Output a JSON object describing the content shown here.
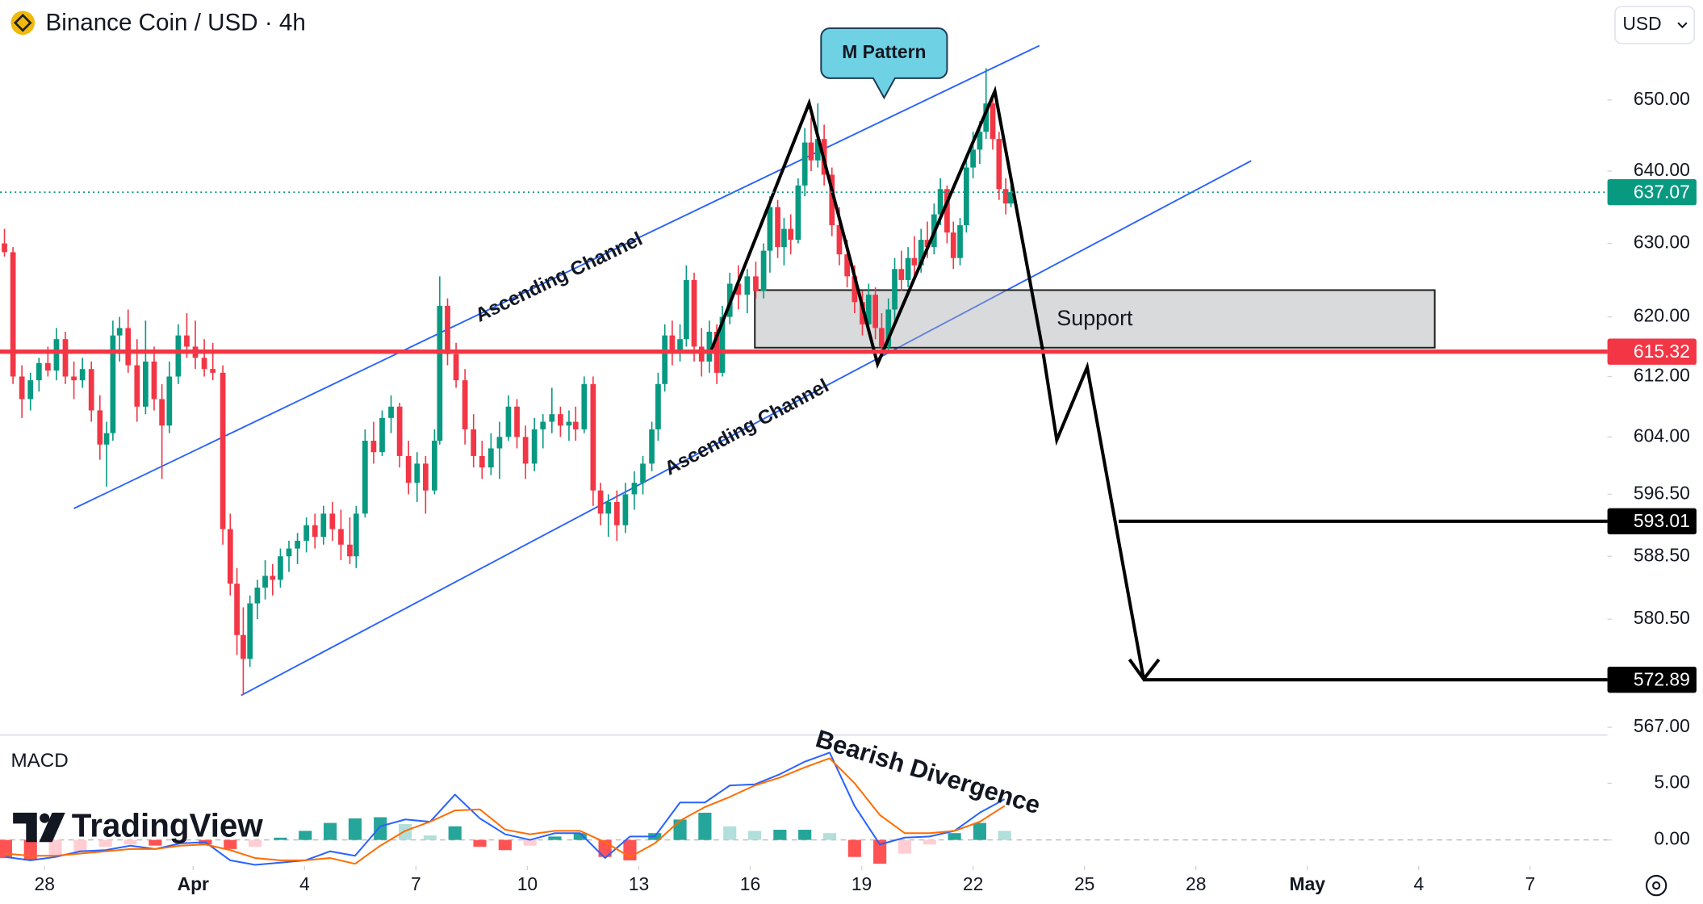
{
  "toolbar": {
    "currency": "USD"
  },
  "watermark": "TradingView",
  "chart_data": [
    {
      "type": "candlestick",
      "title": "Binance Coin / USD · 4h",
      "log_scale": true,
      "grid": false,
      "xlim": [
        -1.2,
        42.08
      ],
      "ylim": [
        566.1,
        664.3
      ],
      "xticks": [
        {
          "value": 0,
          "label": "28"
        },
        {
          "value": 4,
          "label": "Apr"
        },
        {
          "value": 7,
          "label": "4"
        },
        {
          "value": 10,
          "label": "7"
        },
        {
          "value": 13,
          "label": "10"
        },
        {
          "value": 16,
          "label": "13"
        },
        {
          "value": 19,
          "label": "16"
        },
        {
          "value": 22,
          "label": "19"
        },
        {
          "value": 25,
          "label": "22"
        },
        {
          "value": 28,
          "label": "25"
        },
        {
          "value": 31,
          "label": "28"
        },
        {
          "value": 34,
          "label": "May"
        },
        {
          "value": 37,
          "label": "4"
        },
        {
          "value": 40,
          "label": "7"
        }
      ],
      "yticks": [
        {
          "value": 567,
          "label": "567.00"
        },
        {
          "value": 580.5,
          "label": "580.50"
        },
        {
          "value": 588.5,
          "label": "588.50"
        },
        {
          "value": 596.5,
          "label": "596.50"
        },
        {
          "value": 604,
          "label": "604.00"
        },
        {
          "value": 612,
          "label": "612.00"
        },
        {
          "value": 620,
          "label": "620.00"
        },
        {
          "value": 630,
          "label": "630.00"
        },
        {
          "value": 640,
          "label": "640.00"
        },
        {
          "value": 650,
          "label": "650.00"
        }
      ],
      "up_color": "#089981",
      "down_color": "#f23645",
      "candles": [
        [
          -1.08,
          630.0,
          632.0,
          628.2,
          628.8
        ],
        [
          -0.85,
          628.8,
          629.5,
          611.0,
          612.0
        ],
        [
          -0.61,
          612.0,
          613.5,
          606.5,
          609.0
        ],
        [
          -0.38,
          609.0,
          612.5,
          607.5,
          611.5
        ],
        [
          -0.15,
          611.5,
          614.5,
          610.0,
          613.8
        ],
        [
          0.09,
          613.8,
          616.0,
          612.0,
          612.8
        ],
        [
          0.32,
          612.8,
          618.5,
          611.5,
          617.0
        ],
        [
          0.56,
          617.0,
          618.0,
          611.0,
          612.0
        ],
        [
          0.79,
          612.0,
          614.0,
          609.0,
          611.5
        ],
        [
          1.02,
          611.5,
          614.5,
          610.5,
          613.0
        ],
        [
          1.26,
          613.0,
          614.0,
          606.0,
          607.5
        ],
        [
          1.49,
          607.5,
          609.5,
          601.0,
          603.0
        ],
        [
          1.67,
          603.0,
          606.0,
          597.5,
          604.5
        ],
        [
          1.84,
          604.5,
          619.5,
          603.5,
          617.5
        ],
        [
          2.02,
          617.5,
          620.0,
          614.0,
          618.5
        ],
        [
          2.25,
          618.5,
          621.0,
          612.5,
          613.5
        ],
        [
          2.49,
          613.5,
          617.0,
          606.0,
          608.0
        ],
        [
          2.72,
          608.0,
          619.5,
          607.0,
          614.0
        ],
        [
          2.95,
          614.0,
          616.0,
          607.5,
          609.0
        ],
        [
          3.16,
          609.0,
          611.0,
          598.5,
          605.5
        ],
        [
          3.36,
          605.5,
          614.0,
          604.5,
          612.0
        ],
        [
          3.6,
          612.0,
          619.0,
          611.0,
          617.5
        ],
        [
          3.83,
          617.5,
          620.5,
          614.5,
          616.0
        ],
        [
          4.06,
          616.0,
          619.5,
          613.0,
          614.5
        ],
        [
          4.3,
          614.5,
          617.0,
          612.0,
          613.0
        ],
        [
          4.53,
          613.0,
          616.5,
          611.5,
          612.5
        ],
        [
          4.8,
          612.5,
          613.5,
          590.0,
          592.0
        ],
        [
          5.0,
          592.0,
          594.0,
          583.5,
          585.0
        ],
        [
          5.18,
          585.0,
          587.0,
          576.0,
          578.5
        ],
        [
          5.35,
          578.5,
          582.0,
          571.0,
          575.5
        ],
        [
          5.53,
          575.5,
          583.5,
          574.5,
          582.5
        ],
        [
          5.73,
          582.5,
          585.5,
          580.5,
          584.5
        ],
        [
          5.94,
          584.5,
          588.0,
          583.0,
          586.0
        ],
        [
          6.14,
          586.0,
          587.5,
          583.5,
          585.5
        ],
        [
          6.35,
          585.5,
          589.5,
          584.5,
          588.5
        ],
        [
          6.58,
          588.5,
          590.5,
          586.5,
          589.5
        ],
        [
          6.81,
          589.5,
          591.5,
          587.5,
          590.5
        ],
        [
          7.05,
          590.5,
          593.5,
          589.0,
          592.5
        ],
        [
          7.28,
          592.5,
          594.0,
          589.5,
          591.0
        ],
        [
          7.51,
          591.0,
          595.0,
          590.0,
          594.0
        ],
        [
          7.75,
          594.0,
          595.5,
          590.5,
          592.0
        ],
        [
          7.98,
          592.0,
          594.5,
          588.0,
          590.0
        ],
        [
          8.22,
          590.0,
          593.5,
          587.5,
          588.5
        ],
        [
          8.39,
          588.5,
          595.0,
          587.0,
          594.0
        ],
        [
          8.63,
          594.0,
          605.0,
          593.5,
          603.5
        ],
        [
          8.86,
          603.5,
          606.0,
          600.5,
          602.0
        ],
        [
          9.09,
          602.0,
          607.5,
          601.5,
          606.5
        ],
        [
          9.33,
          606.5,
          609.5,
          604.5,
          608.0
        ],
        [
          9.56,
          608.0,
          608.5,
          600.0,
          601.5
        ],
        [
          9.8,
          601.5,
          603.5,
          596.5,
          598.0
        ],
        [
          10.03,
          598.0,
          602.0,
          595.5,
          600.5
        ],
        [
          10.26,
          600.5,
          601.5,
          594.0,
          597.0
        ],
        [
          10.5,
          597.0,
          605.0,
          596.5,
          603.5
        ],
        [
          10.64,
          603.5,
          625.5,
          603.0,
          621.5
        ],
        [
          10.85,
          621.5,
          622.5,
          613.5,
          615.0
        ],
        [
          11.08,
          615.0,
          616.5,
          610.5,
          611.5
        ],
        [
          11.32,
          611.5,
          613.0,
          603.0,
          605.0
        ],
        [
          11.55,
          605.0,
          607.0,
          600.0,
          601.5
        ],
        [
          11.78,
          601.5,
          603.5,
          598.5,
          600.0
        ],
        [
          12.02,
          600.0,
          604.5,
          599.0,
          602.5
        ],
        [
          12.25,
          602.5,
          606.0,
          598.5,
          604.0
        ],
        [
          12.49,
          604.0,
          609.5,
          603.5,
          608.0
        ],
        [
          12.72,
          608.0,
          609.0,
          602.5,
          604.0
        ],
        [
          12.95,
          604.0,
          605.5,
          598.5,
          600.5
        ],
        [
          13.19,
          600.5,
          606.5,
          599.5,
          605.0
        ],
        [
          13.42,
          605.0,
          607.0,
          602.5,
          606.0
        ],
        [
          13.66,
          606.0,
          610.5,
          604.5,
          607.0
        ],
        [
          13.89,
          607.0,
          608.0,
          604.0,
          605.5
        ],
        [
          14.12,
          605.5,
          607.5,
          603.5,
          606.0
        ],
        [
          14.3,
          606.0,
          608.0,
          603.5,
          605.0
        ],
        [
          14.53,
          605.0,
          612.0,
          604.5,
          611.0
        ],
        [
          14.77,
          611.0,
          612.0,
          595.0,
          597.0
        ],
        [
          14.97,
          597.0,
          598.0,
          592.5,
          594.0
        ],
        [
          15.18,
          594.0,
          596.5,
          591.0,
          595.5
        ],
        [
          15.41,
          595.5,
          597.0,
          590.5,
          592.5
        ],
        [
          15.64,
          592.5,
          598.0,
          591.5,
          596.5
        ],
        [
          15.88,
          596.5,
          599.5,
          594.5,
          598.0
        ],
        [
          16.11,
          598.0,
          601.5,
          596.5,
          600.5
        ],
        [
          16.35,
          600.5,
          606.0,
          599.5,
          605.0
        ],
        [
          16.52,
          605.0,
          612.5,
          603.5,
          611.0
        ],
        [
          16.7,
          611.0,
          619.0,
          610.0,
          617.5
        ],
        [
          16.9,
          617.5,
          619.5,
          613.5,
          615.5
        ],
        [
          17.11,
          615.5,
          619.0,
          614.0,
          617.0
        ],
        [
          17.28,
          617.0,
          627.0,
          616.0,
          625.0
        ],
        [
          17.49,
          625.0,
          626.0,
          614.0,
          616.0
        ],
        [
          17.69,
          616.0,
          618.5,
          612.0,
          614.0
        ],
        [
          17.9,
          614.0,
          619.5,
          612.5,
          618.0
        ],
        [
          18.1,
          618.0,
          619.0,
          611.0,
          612.5
        ],
        [
          18.25,
          612.5,
          621.5,
          612.0,
          620.0
        ],
        [
          18.45,
          620.0,
          626.0,
          619.0,
          624.5
        ],
        [
          18.68,
          624.5,
          627.0,
          621.0,
          623.0
        ],
        [
          18.92,
          623.0,
          626.5,
          620.5,
          625.5
        ],
        [
          19.15,
          625.5,
          627.5,
          622.5,
          623.5
        ],
        [
          19.36,
          623.5,
          630.0,
          622.5,
          629.0
        ],
        [
          19.53,
          629.0,
          636.5,
          626.0,
          635.0
        ],
        [
          19.74,
          635.0,
          636.0,
          628.0,
          629.5
        ],
        [
          19.91,
          629.5,
          633.5,
          627.0,
          632.0
        ],
        [
          20.09,
          632.0,
          634.0,
          628.5,
          630.5
        ],
        [
          20.29,
          630.5,
          639.0,
          630.0,
          638.0
        ],
        [
          20.47,
          638.0,
          646.0,
          636.5,
          644.0
        ],
        [
          20.64,
          644.0,
          647.5,
          640.0,
          641.5
        ],
        [
          20.82,
          641.5,
          649.5,
          640.5,
          644.5
        ],
        [
          20.99,
          644.5,
          646.5,
          638.0,
          639.5
        ],
        [
          21.2,
          639.5,
          640.5,
          631.0,
          632.5
        ],
        [
          21.4,
          632.5,
          635.0,
          627.0,
          628.5
        ],
        [
          21.61,
          628.5,
          630.5,
          624.0,
          625.5
        ],
        [
          21.81,
          625.5,
          627.0,
          620.5,
          622.0
        ],
        [
          22.02,
          622.0,
          623.5,
          617.5,
          619.0
        ],
        [
          22.19,
          619.0,
          624.5,
          618.0,
          623.0
        ],
        [
          22.37,
          623.0,
          624.0,
          617.0,
          618.5
        ],
        [
          22.54,
          618.5,
          620.5,
          614.5,
          616.0
        ],
        [
          22.72,
          616.0,
          622.5,
          615.0,
          621.0
        ],
        [
          22.89,
          621.0,
          628.0,
          619.5,
          626.5
        ],
        [
          23.07,
          626.5,
          629.0,
          623.5,
          625.0
        ],
        [
          23.25,
          625.0,
          629.5,
          624.0,
          628.0
        ],
        [
          23.42,
          628.0,
          631.0,
          625.5,
          627.0
        ],
        [
          23.6,
          627.0,
          632.0,
          626.0,
          630.5
        ],
        [
          23.77,
          630.5,
          633.0,
          628.0,
          629.5
        ],
        [
          23.95,
          629.5,
          635.5,
          628.5,
          634.0
        ],
        [
          24.12,
          634.0,
          639.0,
          632.5,
          637.5
        ],
        [
          24.3,
          637.5,
          638.0,
          630.0,
          631.5
        ],
        [
          24.47,
          631.5,
          633.0,
          626.5,
          628.0
        ],
        [
          24.65,
          628.0,
          633.5,
          627.0,
          632.5
        ],
        [
          24.82,
          632.5,
          642.0,
          631.5,
          640.5
        ],
        [
          25.0,
          640.5,
          645.5,
          639.0,
          643.0
        ],
        [
          25.18,
          643.0,
          647.0,
          641.0,
          645.5
        ],
        [
          25.35,
          645.5,
          654.5,
          644.5,
          649.5
        ],
        [
          25.53,
          649.5,
          651.0,
          643.0,
          644.5
        ],
        [
          25.7,
          644.5,
          645.5,
          636.0,
          637.5
        ],
        [
          25.88,
          637.5,
          639.0,
          634.0,
          635.5
        ],
        [
          26.02,
          635.5,
          638.0,
          635.0,
          637.07
        ]
      ],
      "price_lines": [
        {
          "value": 637.07,
          "color": "#089981",
          "style": "dotted"
        },
        {
          "value": 615.32,
          "color": "#f23645",
          "style": "solid"
        },
        {
          "value": 593.01,
          "color": "#000000",
          "style": "solid"
        },
        {
          "value": 572.89,
          "color": "#000000",
          "style": "solid"
        }
      ],
      "annotations": {
        "pattern": "M Pattern",
        "channel_upper": "Ascending Channel",
        "channel_lower": "Ascending Channel",
        "support": "Support"
      }
    },
    {
      "type": "macd",
      "title": "MACD",
      "xlim": [
        -1.2,
        42.08
      ],
      "ylim": [
        -2.2,
        9.2
      ],
      "yticks": [
        {
          "value": 0,
          "label": "0.00"
        },
        {
          "value": 5,
          "label": "5.00"
        }
      ],
      "x": [
        -1.05,
        -0.38,
        0.29,
        0.96,
        1.64,
        2.31,
        2.98,
        3.66,
        4.33,
        5.0,
        5.67,
        6.35,
        7.02,
        7.69,
        8.36,
        9.04,
        9.71,
        10.38,
        11.05,
        11.72,
        12.4,
        13.07,
        13.74,
        14.42,
        15.09,
        15.76,
        16.43,
        17.11,
        17.78,
        18.45,
        19.12,
        19.8,
        20.47,
        21.14,
        21.81,
        22.49,
        23.16,
        23.83,
        24.5,
        25.18,
        25.85
      ],
      "series": [
        {
          "color": "#2962ff",
          "values": [
            -1.5,
            -1.8,
            -1.5,
            -1.0,
            -0.9,
            -0.5,
            -0.8,
            -0.3,
            -0.2,
            -1.8,
            -2.2,
            -2.0,
            -1.8,
            -1.0,
            -1.4,
            1.2,
            1.8,
            1.6,
            4.0,
            1.9,
            0.5,
            0.0,
            0.6,
            0.6,
            -1.6,
            0.3,
            0.3,
            3.3,
            3.3,
            4.8,
            4.9,
            5.8,
            6.9,
            7.7,
            3.0,
            -0.4,
            0.2,
            0.3,
            0.8,
            2.4,
            3.6
          ]
        },
        {
          "color": "#ff6d00",
          "values": [
            -1.2,
            -1.4,
            -1.4,
            -1.2,
            -1.0,
            -0.8,
            -0.8,
            -0.5,
            -0.4,
            -0.9,
            -1.6,
            -1.8,
            -1.8,
            -1.6,
            -2.1,
            -0.5,
            0.8,
            1.6,
            2.6,
            2.7,
            0.9,
            0.5,
            0.8,
            0.8,
            -0.2,
            -1.5,
            -0.3,
            1.7,
            2.9,
            3.8,
            4.8,
            5.5,
            6.4,
            7.2,
            5.0,
            2.2,
            0.6,
            0.6,
            0.8,
            1.6,
            3.0
          ]
        }
      ],
      "histogram": {
        "values": [
          -1.6,
          -1.8,
          -1.4,
          -1.0,
          -0.6,
          -0.4,
          -0.5,
          -0.3,
          -0.4,
          -0.8,
          -0.6,
          0.2,
          0.8,
          1.5,
          1.9,
          2.0,
          1.4,
          0.4,
          1.2,
          -0.6,
          -0.9,
          -0.5,
          0.3,
          0.6,
          -1.5,
          -1.8,
          0.6,
          1.8,
          2.4,
          1.2,
          0.8,
          0.9,
          0.9,
          0.6,
          -1.5,
          -2.1,
          -1.2,
          -0.4,
          0.6,
          1.5,
          0.8
        ],
        "colors": [
          "#26a69a",
          "#b2dfdb",
          "#ffcdd2",
          "#ff5252"
        ]
      },
      "annotation": "Bearish Divergence"
    }
  ]
}
